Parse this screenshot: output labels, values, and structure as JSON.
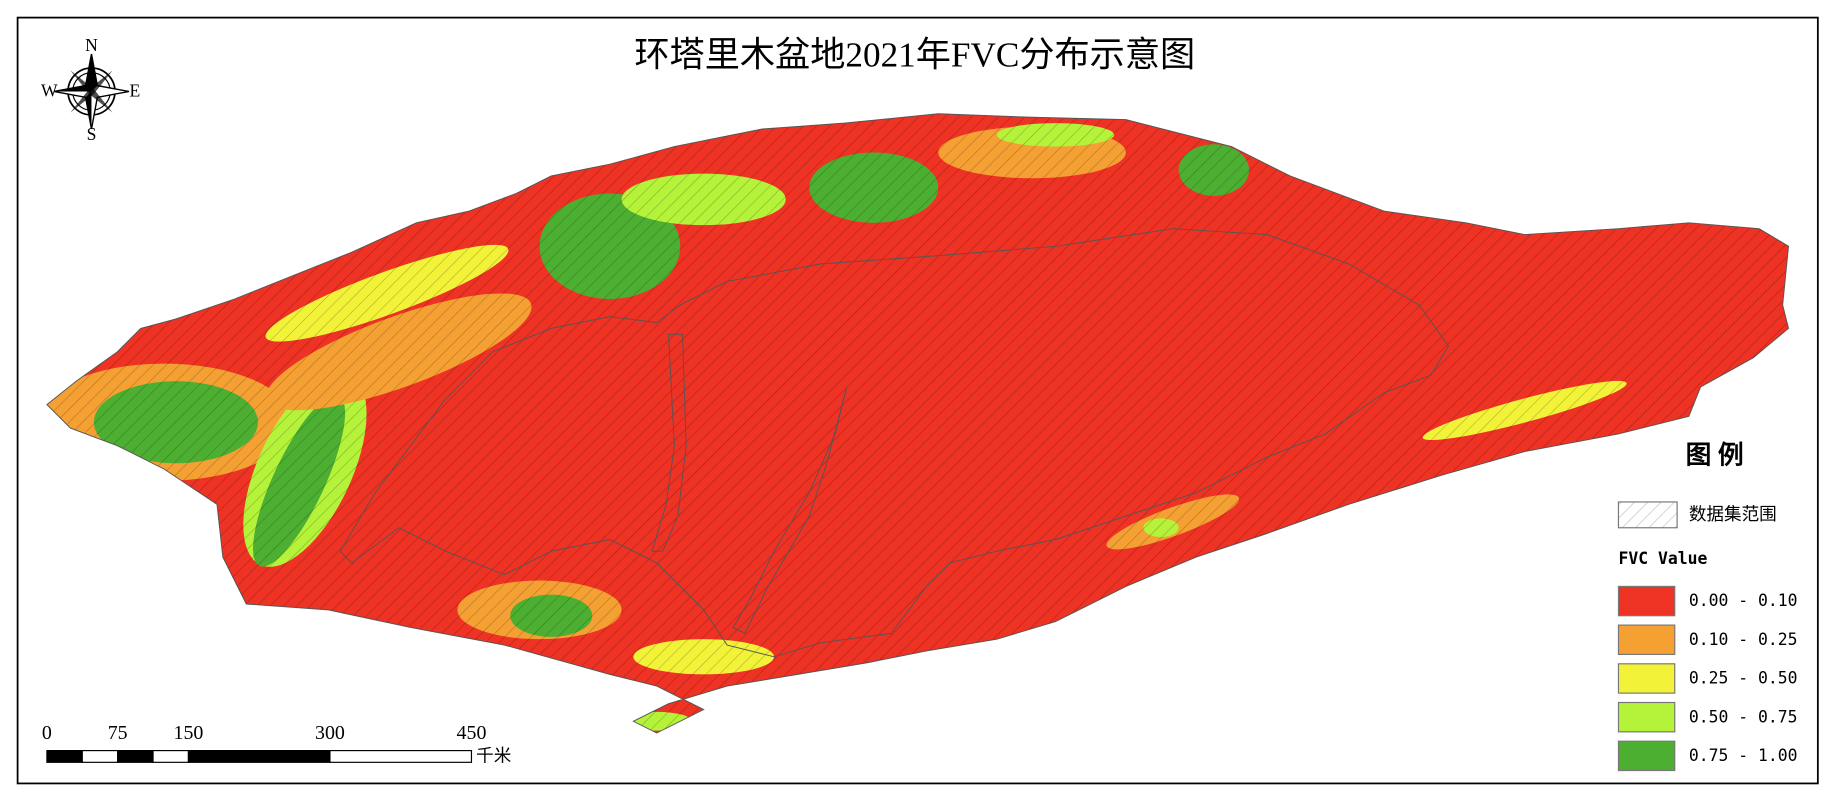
{
  "title": "环塔里木盆地2021年FVC分布示意图",
  "compass": {
    "north": "N",
    "south": "S",
    "east": "E",
    "west": "W"
  },
  "scale_bar": {
    "ticks": [
      0,
      75,
      150,
      300,
      450
    ],
    "unit": "千米"
  },
  "legend": {
    "title": "图 例",
    "extent_label": "数据集范围",
    "field_label": "FVC Value",
    "classes": [
      {
        "label": "0.00 - 0.10",
        "color": "#ee3224"
      },
      {
        "label": "0.10 - 0.25",
        "color": "#f5a033"
      },
      {
        "label": "0.25 - 0.50",
        "color": "#f2f238"
      },
      {
        "label": "0.50 - 0.75",
        "color": "#b5f23a"
      },
      {
        "label": "0.75 - 1.00",
        "color": "#4caf32"
      }
    ]
  }
}
